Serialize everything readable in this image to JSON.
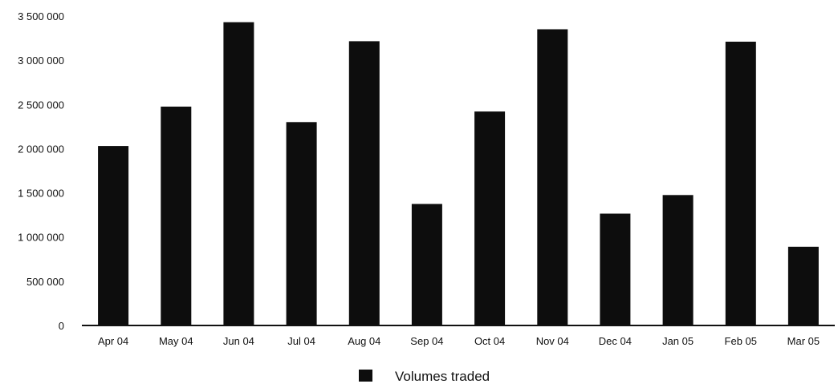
{
  "chart_data": {
    "type": "bar",
    "categories": [
      "Apr 04",
      "May 04",
      "Jun 04",
      "Jul 04",
      "Aug 04",
      "Sep 04",
      "Oct 04",
      "Nov 04",
      "Dec 04",
      "Jan 05",
      "Feb 05",
      "Mar 05"
    ],
    "series": [
      {
        "name": "Volumes traded",
        "values": [
          2030000,
          2475000,
          3430000,
          2300000,
          3215000,
          1375000,
          2420000,
          3350000,
          1265000,
          1475000,
          3210000,
          890000
        ]
      }
    ],
    "ylim": [
      0,
      3500000
    ],
    "yticks": [
      0,
      500000,
      1000000,
      1500000,
      2000000,
      2500000,
      3000000,
      3500000
    ],
    "ytick_labels": [
      "0",
      "500 000",
      "1 000 000",
      "1 500 000",
      "2 000 000",
      "2 500 000",
      "3 000 000",
      "3 500 000"
    ],
    "grid": false,
    "legend": {
      "placement": "bottom-center",
      "label": "Volumes traded"
    },
    "colors": {
      "bar": "#0d0d0d",
      "axis": "#111111"
    }
  }
}
